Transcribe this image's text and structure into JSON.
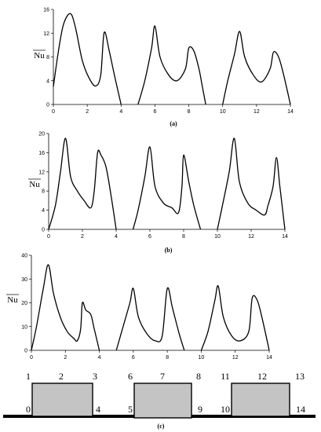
{
  "chart_data": [
    {
      "type": "line",
      "caption": "(a)",
      "ylabel": "Nu",
      "xlim": [
        0,
        14
      ],
      "ylim": [
        0,
        16
      ],
      "xticks": [
        0,
        2,
        4,
        6,
        8,
        10,
        12,
        14
      ],
      "yticks": [
        0,
        4,
        8,
        12,
        16
      ],
      "segments": [
        {
          "x": [
            0,
            0.3,
            0.6,
            1.0,
            1.3,
            1.7,
            2.1,
            2.5,
            2.8,
            3.0,
            3.3,
            3.6,
            4.0
          ],
          "y": [
            3,
            9,
            13.5,
            15.3,
            13,
            7.5,
            4.5,
            3.1,
            5,
            12.1,
            9,
            5,
            0
          ]
        },
        {
          "x": [
            5,
            5.4,
            5.8,
            6.0,
            6.3,
            6.8,
            7.3,
            7.8,
            8.0,
            8.3,
            8.6,
            8.8,
            9.0
          ],
          "y": [
            0,
            4,
            9.5,
            13.2,
            8,
            5,
            4,
            6,
            9.5,
            9,
            6,
            3,
            0
          ]
        },
        {
          "x": [
            10,
            10.3,
            10.7,
            11.0,
            11.3,
            11.8,
            12.3,
            12.8,
            13.0,
            13.3,
            13.6,
            14.0
          ],
          "y": [
            0,
            4,
            8.5,
            12.3,
            8,
            5,
            3.8,
            6,
            8.8,
            8,
            5,
            0
          ]
        }
      ]
    },
    {
      "type": "line",
      "caption": "(b)",
      "ylabel": "Nu",
      "xlim": [
        0,
        14
      ],
      "ylim": [
        0,
        20
      ],
      "xticks": [
        0,
        2,
        4,
        6,
        8,
        10,
        12,
        14
      ],
      "yticks": [
        0,
        4,
        8,
        12,
        16,
        20
      ],
      "segments": [
        {
          "x": [
            0,
            0.4,
            0.7,
            1.0,
            1.3,
            1.7,
            2.1,
            2.5,
            2.7,
            2.9,
            3.1,
            3.4,
            3.7,
            4.0
          ],
          "y": [
            0,
            5,
            12,
            19,
            11,
            8,
            6,
            4.5,
            8,
            16,
            15.5,
            13,
            7,
            0
          ]
        },
        {
          "x": [
            5,
            5.3,
            5.7,
            6.0,
            6.3,
            6.8,
            7.3,
            7.7,
            7.9,
            8.0,
            8.3,
            8.6,
            9.0
          ],
          "y": [
            0,
            4,
            11,
            17.2,
            9,
            5.5,
            4.5,
            3.5,
            9,
            15.5,
            10,
            5,
            0
          ]
        },
        {
          "x": [
            10,
            10.3,
            10.7,
            11.0,
            11.3,
            11.8,
            12.3,
            12.8,
            13.0,
            13.3,
            13.5,
            13.7,
            14.0
          ],
          "y": [
            0,
            5,
            12,
            19,
            10,
            5.5,
            4,
            3,
            5,
            9,
            15,
            9,
            0
          ]
        }
      ]
    },
    {
      "type": "line",
      "caption": "",
      "ylabel": "Nu",
      "xlim": [
        0,
        14
      ],
      "ylim": [
        0,
        40
      ],
      "xticks": [
        0,
        2,
        4,
        6,
        8,
        10,
        12,
        14
      ],
      "yticks": [
        0,
        10,
        20,
        30,
        40
      ],
      "segments": [
        {
          "x": [
            0,
            0.3,
            0.7,
            1.0,
            1.3,
            1.7,
            2.1,
            2.5,
            2.7,
            2.9,
            3.0,
            3.2,
            3.5,
            3.7,
            4.0
          ],
          "y": [
            0,
            10,
            26,
            36,
            24,
            14,
            8,
            5,
            4,
            9,
            20,
            17,
            15,
            9,
            0
          ]
        },
        {
          "x": [
            5,
            5.4,
            5.8,
            6.0,
            6.3,
            6.8,
            7.3,
            7.7,
            8.0,
            8.3,
            8.7,
            9.0
          ],
          "y": [
            0,
            10,
            20,
            26,
            14,
            7,
            4,
            6,
            26,
            18,
            7,
            0
          ]
        },
        {
          "x": [
            10,
            10.4,
            10.8,
            11.0,
            11.3,
            11.8,
            12.3,
            12.8,
            13.0,
            13.3,
            13.6,
            14.0
          ],
          "y": [
            0,
            8,
            21,
            27,
            14,
            6,
            4,
            8,
            22,
            21,
            13,
            0
          ]
        }
      ]
    }
  ],
  "final_caption": "(c)",
  "domain_labels": {
    "top": [
      "1",
      "2",
      "3",
      "6",
      "7",
      "8",
      "11",
      "12",
      "13"
    ],
    "bottom": [
      "0",
      "4",
      "5",
      "9",
      "10",
      "14"
    ]
  },
  "colors": {
    "line": "#000000",
    "block_fill": "#c4c4c4",
    "block_stroke": "#000000"
  }
}
